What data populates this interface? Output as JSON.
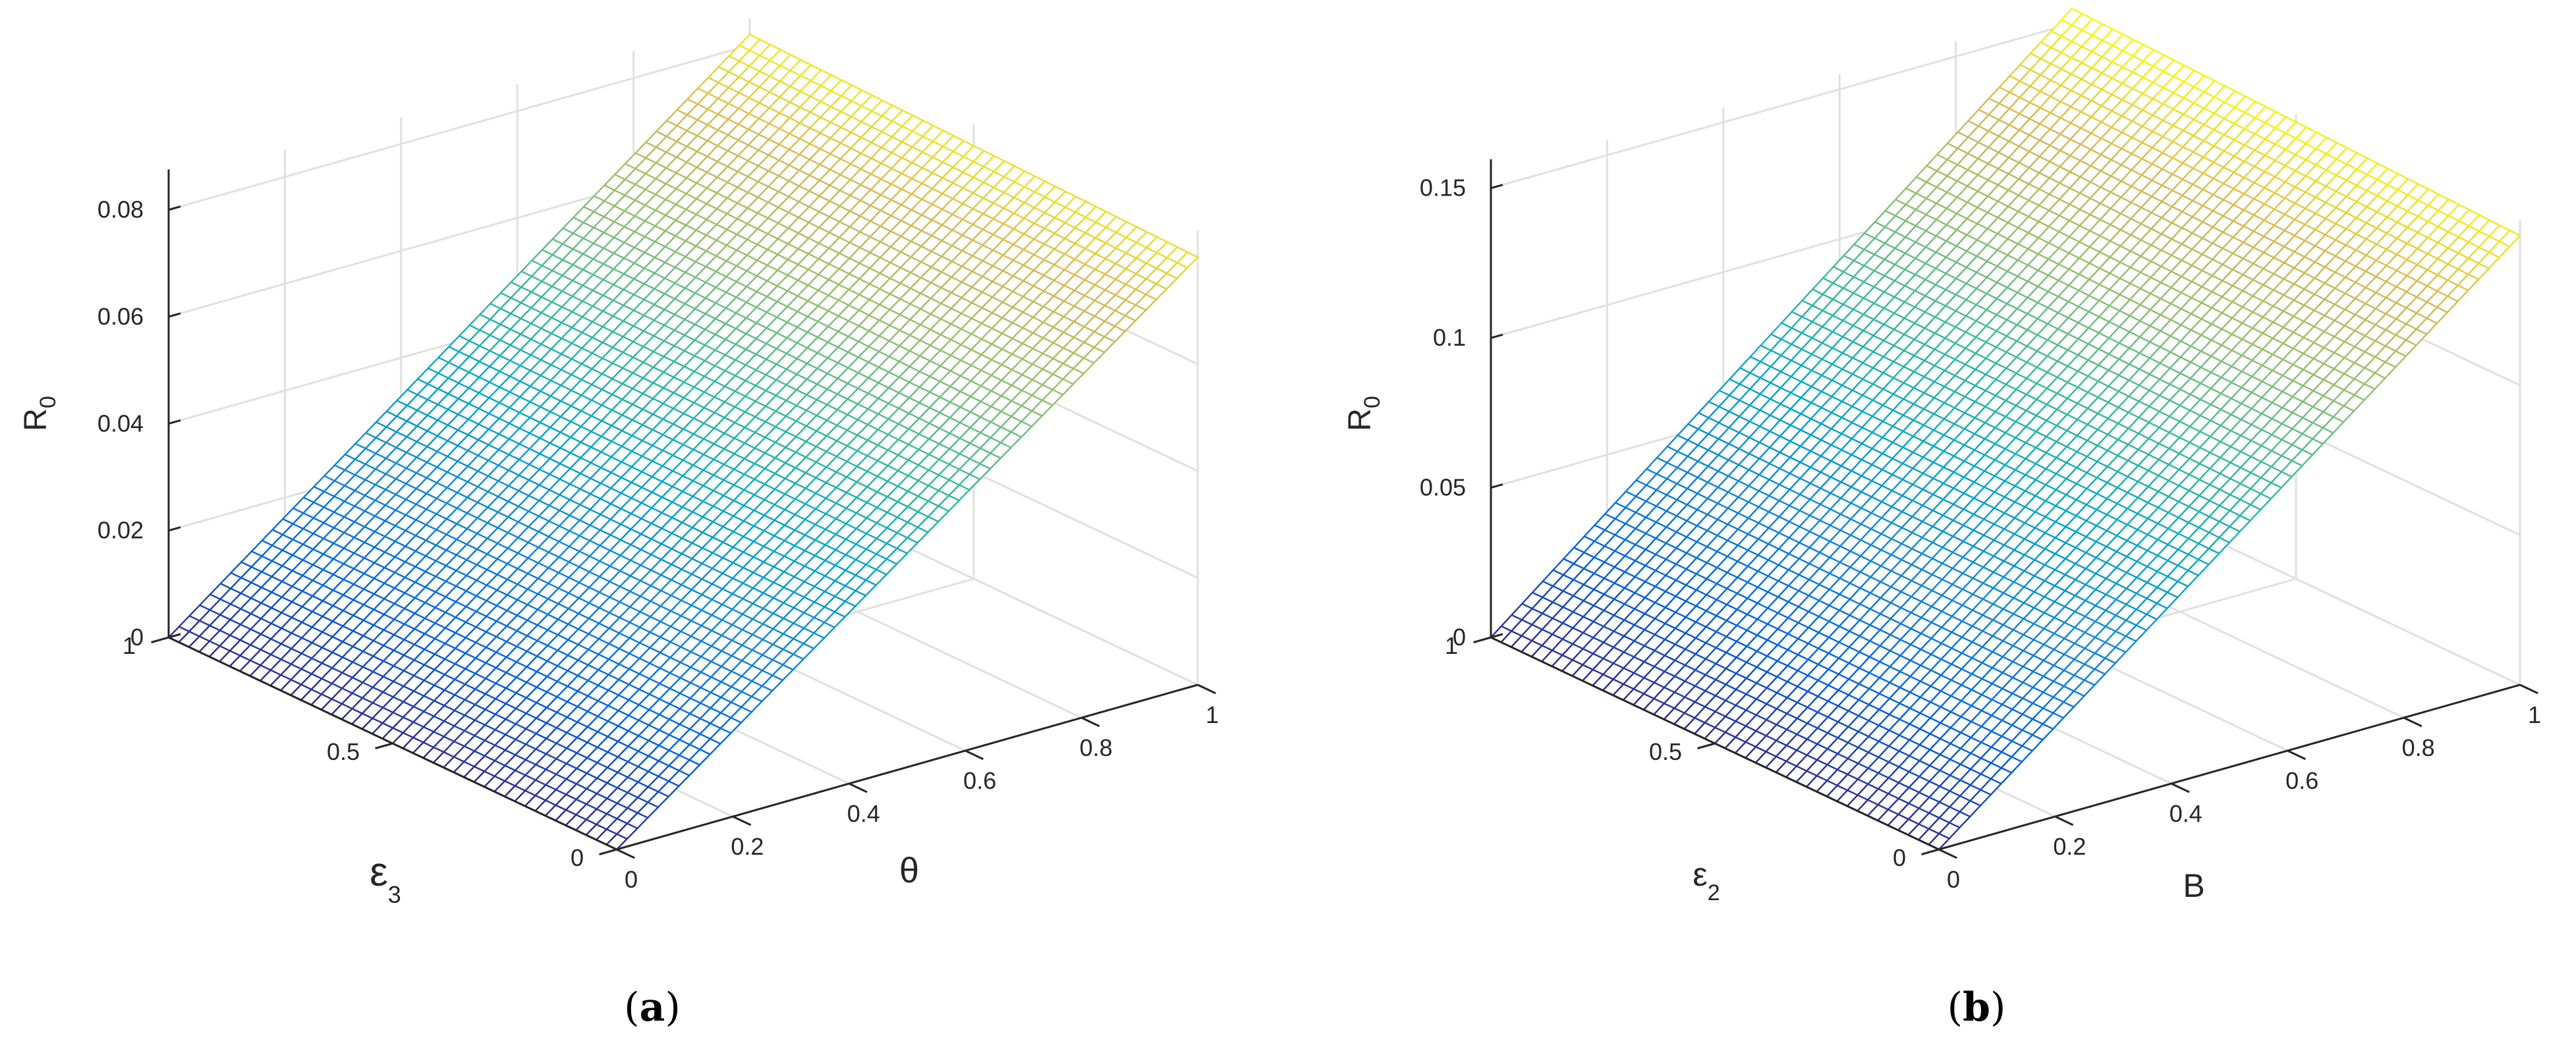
{
  "chart_data": [
    {
      "type": "surface",
      "panel_label": "a",
      "x_axis": {
        "label": "θ",
        "ticks": [
          0,
          0.2,
          0.4,
          0.6,
          0.8,
          1
        ],
        "tick_labels": [
          "0",
          "0.2",
          "0.4",
          "0.6",
          "0.8",
          "1"
        ],
        "range": [
          0,
          1
        ]
      },
      "y_axis": {
        "label": "ε",
        "label_subscript": "3",
        "ticks": [
          0,
          0.5,
          1
        ],
        "tick_labels": [
          "0",
          "0.5",
          "1"
        ],
        "range": [
          0,
          1
        ]
      },
      "z_axis": {
        "label": "R",
        "label_subscript": "0",
        "ticks": [
          0,
          0.02,
          0.04,
          0.06,
          0.08
        ],
        "tick_labels": [
          "0",
          "0.02",
          "0.04",
          "0.06",
          "0.08"
        ],
        "range": [
          0,
          0.085
        ]
      },
      "surface": {
        "corners": [
          {
            "x": 0,
            "y": 0,
            "z": 0
          },
          {
            "x": 0,
            "y": 1,
            "z": 0
          },
          {
            "x": 1,
            "y": 0,
            "z": 0.08
          },
          {
            "x": 1,
            "y": 1,
            "z": 0.082
          }
        ],
        "colormap": "parula",
        "grid": true
      }
    },
    {
      "type": "surface",
      "panel_label": "b",
      "x_axis": {
        "label": "B",
        "ticks": [
          0,
          0.2,
          0.4,
          0.6,
          0.8,
          1
        ],
        "tick_labels": [
          "0",
          "0.2",
          "0.4",
          "0.6",
          "0.8",
          "1"
        ],
        "range": [
          0,
          1
        ]
      },
      "y_axis": {
        "label": "ε",
        "label_subscript": "2",
        "ticks": [
          0,
          0.5,
          1
        ],
        "tick_labels": [
          "0",
          "0.5",
          "1"
        ],
        "range": [
          0,
          1
        ]
      },
      "z_axis": {
        "label": "R",
        "label_subscript": "0",
        "ticks": [
          0,
          0.05,
          0.1,
          0.15
        ],
        "tick_labels": [
          "0",
          "0.05",
          "0.1",
          "0.15"
        ],
        "range": [
          0,
          0.155
        ]
      },
      "surface": {
        "corners": [
          {
            "x": 0,
            "y": 0,
            "z": 0
          },
          {
            "x": 0,
            "y": 1,
            "z": 0
          },
          {
            "x": 1,
            "y": 0,
            "z": 0.15
          },
          {
            "x": 1,
            "y": 1,
            "z": 0.155
          }
        ],
        "colormap": "parula",
        "grid": true
      }
    }
  ]
}
